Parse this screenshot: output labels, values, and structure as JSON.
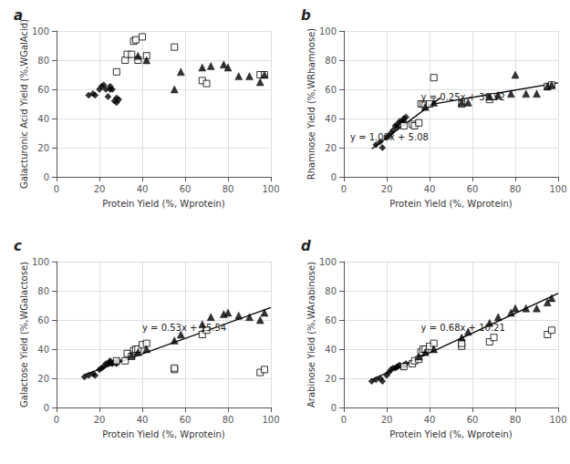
{
  "chart_data": [
    {
      "type": "scatter",
      "title": "a",
      "xlabel": "Protein Yield (%, Wprotein)",
      "ylabel": "Galacturonic Acid Yield (%,WGalAcid)",
      "xlim": [
        0,
        100
      ],
      "ylim": [
        0,
        100
      ],
      "xticks": [
        0,
        20,
        40,
        60,
        80,
        100
      ],
      "yticks": [
        0,
        20,
        40,
        60,
        80,
        100
      ],
      "grid": true,
      "series": [
        {
          "marker": "diamond",
          "color": "black",
          "x": [
            15,
            17,
            18,
            20,
            21,
            22,
            23,
            24,
            25,
            25,
            26,
            27,
            28,
            28,
            29
          ],
          "values": [
            56,
            57,
            56,
            60,
            62,
            63,
            60,
            55,
            60,
            62,
            60,
            52,
            54,
            51,
            53
          ]
        },
        {
          "marker": "open-square",
          "color": "black",
          "x": [
            28,
            32,
            33,
            35,
            36,
            37,
            38,
            40,
            42,
            55,
            68,
            70,
            95,
            97
          ],
          "values": [
            72,
            80,
            84,
            84,
            93,
            94,
            80,
            96,
            83,
            89,
            66,
            64,
            70,
            70
          ]
        },
        {
          "marker": "triangle",
          "color": "black",
          "x": [
            38,
            42,
            55,
            58,
            68,
            72,
            78,
            80,
            85,
            90,
            95,
            97
          ],
          "values": [
            83,
            80,
            60,
            72,
            75,
            76,
            77,
            75,
            69,
            69,
            65,
            70
          ]
        }
      ]
    },
    {
      "type": "scatter",
      "title": "b",
      "xlabel": "Protein Yield (%, Wprotein)",
      "ylabel": "Rhamnose Yield (%,WRhamnose)",
      "xlim": [
        0,
        100
      ],
      "ylim": [
        0,
        100
      ],
      "xticks": [
        0,
        20,
        40,
        60,
        80,
        100
      ],
      "yticks": [
        0,
        20,
        40,
        60,
        80,
        100
      ],
      "grid": true,
      "annotations": [
        "y = 1.09x + 5.08",
        "y = 0.25x + 39.52"
      ],
      "series": [
        {
          "marker": "diamond",
          "color": "black",
          "x": [
            15,
            17,
            18,
            20,
            21,
            22,
            23,
            24,
            25,
            25,
            26,
            27,
            28,
            28,
            29
          ],
          "values": [
            22,
            24,
            20,
            27,
            28,
            30,
            32,
            35,
            34,
            36,
            38,
            38,
            40,
            38,
            41
          ]
        },
        {
          "marker": "open-square",
          "color": "black",
          "x": [
            28,
            32,
            33,
            35,
            36,
            37,
            38,
            40,
            42,
            55,
            68,
            70,
            95,
            97
          ],
          "values": [
            35,
            36,
            35,
            37,
            50,
            50,
            49,
            50,
            68,
            50,
            53,
            55,
            62,
            63
          ]
        },
        {
          "marker": "triangle",
          "color": "black",
          "x": [
            38,
            42,
            55,
            58,
            68,
            72,
            78,
            80,
            85,
            90,
            95,
            97
          ],
          "values": [
            48,
            51,
            51,
            51,
            55,
            56,
            57,
            70,
            57,
            57,
            62,
            63
          ]
        },
        {
          "type": "line",
          "line_style": "solid",
          "color": "black",
          "x": [
            13,
            45
          ],
          "values": [
            19.25,
            54.13
          ]
        },
        {
          "type": "line",
          "line_style": "solid",
          "color": "black",
          "x": [
            35,
            100
          ],
          "values": [
            48.27,
            64.52
          ]
        }
      ]
    },
    {
      "type": "scatter",
      "title": "c",
      "xlabel": "Protein Yield (%, Wprotein)",
      "ylabel": "Galactose Yield (%,WGalactose)",
      "xlim": [
        0,
        100
      ],
      "ylim": [
        0,
        100
      ],
      "xticks": [
        0,
        20,
        40,
        60,
        80,
        100
      ],
      "yticks": [
        0,
        20,
        40,
        60,
        80,
        100
      ],
      "grid": true,
      "annotations": [
        "y = 0.53x + 15.54"
      ],
      "series": [
        {
          "marker": "diamond",
          "color": "black",
          "x": [
            13,
            15,
            17,
            18,
            20,
            21,
            22,
            23,
            24,
            25,
            25,
            26,
            27,
            28,
            28,
            29
          ],
          "values": [
            21,
            22,
            23,
            22,
            26,
            27,
            28,
            30,
            30,
            31,
            32,
            30,
            31,
            31,
            30,
            32
          ]
        },
        {
          "marker": "open-square",
          "color": "black",
          "x": [
            28,
            32,
            33,
            35,
            36,
            37,
            38,
            40,
            42,
            55,
            55,
            68,
            70,
            95,
            97
          ],
          "values": [
            32,
            32,
            37,
            35,
            39,
            40,
            40,
            43,
            44,
            26,
            27,
            50,
            53,
            24,
            26
          ]
        },
        {
          "marker": "triangle",
          "color": "black",
          "x": [
            35,
            38,
            42,
            55,
            58,
            68,
            72,
            78,
            80,
            85,
            90,
            95,
            97
          ],
          "values": [
            36,
            38,
            40,
            46,
            50,
            57,
            62,
            64,
            65,
            63,
            62,
            60,
            65
          ]
        },
        {
          "type": "line",
          "line_style": "solid",
          "color": "black",
          "x": [
            13,
            100
          ],
          "values": [
            22.43,
            68.54
          ]
        }
      ]
    },
    {
      "type": "scatter",
      "title": "d",
      "xlabel": "Protein Yield (%, Wprotein)",
      "ylabel": "Arabinose Yield (%,WArabinose)",
      "xlim": [
        0,
        100
      ],
      "ylim": [
        0,
        100
      ],
      "xticks": [
        0,
        20,
        40,
        60,
        80,
        100
      ],
      "yticks": [
        0,
        20,
        40,
        60,
        80,
        100
      ],
      "grid": true,
      "annotations": [
        "y = 0.68x + 10.21"
      ],
      "series": [
        {
          "marker": "diamond",
          "color": "black",
          "x": [
            13,
            15,
            17,
            18,
            20,
            21,
            22,
            23,
            24,
            25,
            25,
            26,
            27,
            28,
            28,
            29
          ],
          "values": [
            18,
            19,
            20,
            18,
            22,
            24,
            26,
            27,
            27,
            28,
            28,
            29,
            28,
            29,
            28,
            30
          ]
        },
        {
          "marker": "open-square",
          "color": "black",
          "x": [
            28,
            32,
            33,
            35,
            36,
            37,
            38,
            40,
            42,
            55,
            55,
            68,
            70,
            95,
            97
          ],
          "values": [
            28,
            30,
            32,
            33,
            38,
            40,
            40,
            42,
            44,
            42,
            44,
            45,
            48,
            50,
            53
          ]
        },
        {
          "marker": "triangle",
          "color": "black",
          "x": [
            35,
            38,
            42,
            55,
            58,
            68,
            72,
            78,
            80,
            85,
            90,
            95,
            97
          ],
          "values": [
            35,
            38,
            40,
            48,
            52,
            58,
            62,
            65,
            68,
            68,
            68,
            72,
            75
          ]
        },
        {
          "type": "line",
          "line_style": "solid",
          "color": "black",
          "x": [
            13,
            100
          ],
          "values": [
            19.05,
            78.21
          ]
        }
      ]
    }
  ]
}
